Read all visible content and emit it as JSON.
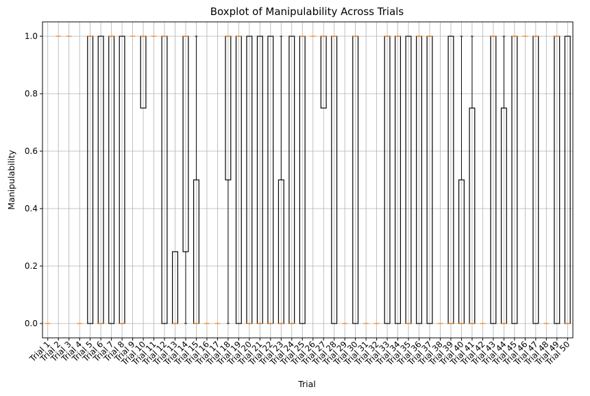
{
  "chart_data": {
    "type": "boxplot",
    "title": "Boxplot of Manipulability Across Trials",
    "xlabel": "Trial",
    "ylabel": "Manipulability",
    "ylim": [
      -0.05,
      1.05
    ],
    "yticks": [
      0.0,
      0.2,
      0.4,
      0.6,
      0.8,
      1.0
    ],
    "ytick_labels": [
      "0.0",
      "0.2",
      "0.4",
      "0.6",
      "0.8",
      "1.0"
    ],
    "grid": true,
    "categories": [
      "Trial 1",
      "Trial 2",
      "Trial 3",
      "Trial 4",
      "Trial 5",
      "Trial 6",
      "Trial 7",
      "Trial 8",
      "Trial 9",
      "Trial 10",
      "Trial 11",
      "Trial 12",
      "Trial 13",
      "Trial 14",
      "Trial 15",
      "Trial 16",
      "Trial 17",
      "Trial 18",
      "Trial 19",
      "Trial 20",
      "Trial 21",
      "Trial 22",
      "Trial 23",
      "Trial 24",
      "Trial 25",
      "Trial 26",
      "Trial 27",
      "Trial 28",
      "Trial 29",
      "Trial 30",
      "Trial 31",
      "Trial 32",
      "Trial 33",
      "Trial 34",
      "Trial 35",
      "Trial 36",
      "Trial 37",
      "Trial 38",
      "Trial 39",
      "Trial 40",
      "Trial 41",
      "Trial 42",
      "Trial 43",
      "Trial 44",
      "Trial 45",
      "Trial 46",
      "Trial 47",
      "Trial 48",
      "Trial 49",
      "Trial 50"
    ],
    "boxes": [
      {
        "q1": 0,
        "median": 0,
        "q3": 0,
        "wlo": 0,
        "whi": 0
      },
      {
        "q1": 1,
        "median": 1,
        "q3": 1,
        "wlo": 1,
        "whi": 1
      },
      {
        "q1": 1,
        "median": 1,
        "q3": 1,
        "wlo": 1,
        "whi": 1
      },
      {
        "q1": 0,
        "median": 0,
        "q3": 0,
        "wlo": 0,
        "whi": 0
      },
      {
        "q1": 0,
        "median": 1,
        "q3": 1,
        "wlo": 0,
        "whi": 1
      },
      {
        "q1": 0,
        "median": 0,
        "q3": 1,
        "wlo": 0,
        "whi": 1
      },
      {
        "q1": 0,
        "median": 1,
        "q3": 1,
        "wlo": 0,
        "whi": 1
      },
      {
        "q1": 0,
        "median": 0,
        "q3": 1,
        "wlo": 0,
        "whi": 1
      },
      {
        "q1": 1,
        "median": 1,
        "q3": 1,
        "wlo": 1,
        "whi": 1
      },
      {
        "q1": 0.75,
        "median": 1,
        "q3": 1,
        "wlo": 0.75,
        "whi": 1
      },
      {
        "q1": 1,
        "median": 1,
        "q3": 1,
        "wlo": 1,
        "whi": 1
      },
      {
        "q1": 0,
        "median": 1,
        "q3": 1,
        "wlo": 0,
        "whi": 1
      },
      {
        "q1": 0,
        "median": 0,
        "q3": 0.25,
        "wlo": 0,
        "whi": 0.25
      },
      {
        "q1": 0.25,
        "median": 1,
        "q3": 1,
        "wlo": 0,
        "whi": 1
      },
      {
        "q1": 0,
        "median": 0,
        "q3": 0.5,
        "wlo": 0,
        "whi": 1
      },
      {
        "q1": 0,
        "median": 0,
        "q3": 0,
        "wlo": 0,
        "whi": 0
      },
      {
        "q1": 0,
        "median": 0,
        "q3": 0,
        "wlo": 0,
        "whi": 0
      },
      {
        "q1": 0.5,
        "median": 1,
        "q3": 1,
        "wlo": 0,
        "whi": 1
      },
      {
        "q1": 0,
        "median": 1,
        "q3": 1,
        "wlo": 0,
        "whi": 1
      },
      {
        "q1": 0,
        "median": 0,
        "q3": 1,
        "wlo": 0,
        "whi": 1
      },
      {
        "q1": 0,
        "median": 0,
        "q3": 1,
        "wlo": 0,
        "whi": 1
      },
      {
        "q1": 0,
        "median": 0,
        "q3": 1,
        "wlo": 0,
        "whi": 1
      },
      {
        "q1": 0,
        "median": 0,
        "q3": 0.5,
        "wlo": 0,
        "whi": 1
      },
      {
        "q1": 0,
        "median": 0,
        "q3": 1,
        "wlo": 0,
        "whi": 1
      },
      {
        "q1": 0,
        "median": 1,
        "q3": 1,
        "wlo": 0,
        "whi": 1
      },
      {
        "q1": 1,
        "median": 1,
        "q3": 1,
        "wlo": 1,
        "whi": 1
      },
      {
        "q1": 0.75,
        "median": 1,
        "q3": 1,
        "wlo": 0.75,
        "whi": 1
      },
      {
        "q1": 0,
        "median": 1,
        "q3": 1,
        "wlo": 0,
        "whi": 1
      },
      {
        "q1": 0,
        "median": 0,
        "q3": 0,
        "wlo": 0,
        "whi": 0
      },
      {
        "q1": 0,
        "median": 1,
        "q3": 1,
        "wlo": 0,
        "whi": 1
      },
      {
        "q1": 0,
        "median": 0,
        "q3": 0,
        "wlo": 0,
        "whi": 0
      },
      {
        "q1": 0,
        "median": 0,
        "q3": 0,
        "wlo": 0,
        "whi": 0
      },
      {
        "q1": 0,
        "median": 1,
        "q3": 1,
        "wlo": 0,
        "whi": 1
      },
      {
        "q1": 0,
        "median": 1,
        "q3": 1,
        "wlo": 0,
        "whi": 1
      },
      {
        "q1": 0,
        "median": 0,
        "q3": 1,
        "wlo": 0,
        "whi": 1
      },
      {
        "q1": 0,
        "median": 1,
        "q3": 1,
        "wlo": 0,
        "whi": 1
      },
      {
        "q1": 0,
        "median": 1,
        "q3": 1,
        "wlo": 0,
        "whi": 1
      },
      {
        "q1": 0,
        "median": 0,
        "q3": 0,
        "wlo": 0,
        "whi": 0
      },
      {
        "q1": 0,
        "median": 0,
        "q3": 1,
        "wlo": 0,
        "whi": 1
      },
      {
        "q1": 0,
        "median": 0,
        "q3": 0.5,
        "wlo": 0,
        "whi": 1
      },
      {
        "q1": 0,
        "median": 0,
        "q3": 0.75,
        "wlo": 0,
        "whi": 1
      },
      {
        "q1": 0,
        "median": 0,
        "q3": 0,
        "wlo": 0,
        "whi": 0
      },
      {
        "q1": 0,
        "median": 1,
        "q3": 1,
        "wlo": 0,
        "whi": 1
      },
      {
        "q1": 0,
        "median": 0,
        "q3": 0.75,
        "wlo": 0,
        "whi": 1
      },
      {
        "q1": 0,
        "median": 1,
        "q3": 1,
        "wlo": 0,
        "whi": 1
      },
      {
        "q1": 1,
        "median": 1,
        "q3": 1,
        "wlo": 1,
        "whi": 1
      },
      {
        "q1": 0,
        "median": 1,
        "q3": 1,
        "wlo": 0,
        "whi": 1
      },
      {
        "q1": 0,
        "median": 0,
        "q3": 0,
        "wlo": 0,
        "whi": 0
      },
      {
        "q1": 0,
        "median": 1,
        "q3": 1,
        "wlo": 0,
        "whi": 1
      },
      {
        "q1": 0,
        "median": 0,
        "q3": 1,
        "wlo": 0,
        "whi": 1
      }
    ],
    "colors": {
      "box": "#000000",
      "median": "#ff7f0e",
      "grid": "#b0b0b0"
    }
  }
}
